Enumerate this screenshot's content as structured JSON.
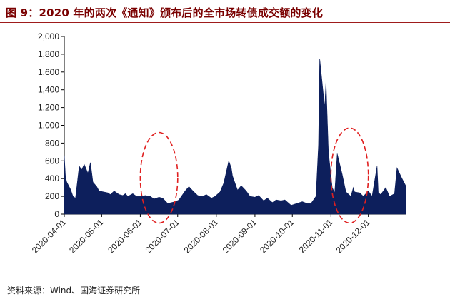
{
  "figure": {
    "title": "图 9：2020 年的两次《通知》颁布后的全市场转债成交额的变化",
    "source": "资料来源：Wind、国海证券研究所"
  },
  "colors": {
    "title": "#7a0000",
    "rule": "#9e1b1b",
    "area_fill": "#0d1f5c",
    "ellipse": "#e02020"
  },
  "chart_data": {
    "type": "area",
    "title": "",
    "xlabel": "",
    "ylabel": "",
    "ylim": [
      0,
      2000
    ],
    "yticks": [
      0,
      200,
      400,
      600,
      800,
      1000,
      1200,
      1400,
      1600,
      1800,
      2000
    ],
    "ytick_labels": [
      "0",
      "200",
      "400",
      "600",
      "800",
      "1,000",
      "1,200",
      "1,400",
      "1,600",
      "1,800",
      "2,000"
    ],
    "xlim": [
      "2020-04-01",
      "2020-12-31"
    ],
    "xticks": [
      "2020-04-01",
      "2020-05-01",
      "2020-06-01",
      "2020-07-01",
      "2020-08-01",
      "2020-09-01",
      "2020-10-01",
      "2020-11-01",
      "2020-12-01"
    ],
    "grid": false,
    "legend": "none",
    "series": [
      {
        "x": [
          "2020-04-01",
          "2020-04-02",
          "2020-04-03",
          "2020-04-06",
          "2020-04-08",
          "2020-04-10",
          "2020-04-13",
          "2020-04-15",
          "2020-04-17",
          "2020-04-20",
          "2020-04-22",
          "2020-04-24",
          "2020-04-27",
          "2020-04-29",
          "2020-05-06",
          "2020-05-08",
          "2020-05-11",
          "2020-05-13",
          "2020-05-15",
          "2020-05-18",
          "2020-05-20",
          "2020-05-22",
          "2020-05-26",
          "2020-05-29",
          "2020-06-02",
          "2020-06-05",
          "2020-06-09",
          "2020-06-12",
          "2020-06-16",
          "2020-06-19",
          "2020-06-23",
          "2020-06-29",
          "2020-07-02",
          "2020-07-07",
          "2020-07-10",
          "2020-07-14",
          "2020-07-17",
          "2020-07-21",
          "2020-07-24",
          "2020-07-28",
          "2020-07-31",
          "2020-08-04",
          "2020-08-07",
          "2020-08-11",
          "2020-08-13",
          "2020-08-14",
          "2020-08-18",
          "2020-08-21",
          "2020-08-25",
          "2020-08-28",
          "2020-09-01",
          "2020-09-04",
          "2020-09-08",
          "2020-09-11",
          "2020-09-15",
          "2020-09-18",
          "2020-09-22",
          "2020-09-25",
          "2020-09-30",
          "2020-10-09",
          "2020-10-13",
          "2020-10-16",
          "2020-10-20",
          "2020-10-22",
          "2020-10-23",
          "2020-10-27",
          "2020-10-28",
          "2020-10-30",
          "2020-11-02",
          "2020-11-04",
          "2020-11-06",
          "2020-11-10",
          "2020-11-13",
          "2020-11-17",
          "2020-11-19",
          "2020-11-20",
          "2020-11-24",
          "2020-11-27",
          "2020-12-01",
          "2020-12-04",
          "2020-12-08",
          "2020-12-09",
          "2020-12-11",
          "2020-12-15",
          "2020-12-18",
          "2020-12-22",
          "2020-12-24",
          "2020-12-28",
          "2020-12-31"
        ],
        "values": [
          660,
          420,
          360,
          280,
          200,
          180,
          540,
          500,
          560,
          460,
          580,
          360,
          310,
          260,
          240,
          220,
          260,
          240,
          220,
          210,
          230,
          200,
          230,
          200,
          200,
          210,
          200,
          170,
          190,
          180,
          120,
          140,
          160,
          260,
          310,
          250,
          210,
          200,
          220,
          180,
          200,
          250,
          350,
          600,
          520,
          430,
          270,
          320,
          260,
          200,
          190,
          210,
          150,
          180,
          130,
          160,
          150,
          160,
          100,
          140,
          120,
          120,
          200,
          780,
          1750,
          1200,
          1500,
          700,
          300,
          240,
          680,
          450,
          250,
          200,
          300,
          250,
          240,
          200,
          260,
          200,
          540,
          240,
          220,
          300,
          200,
          230,
          520,
          400,
          320
        ]
      }
    ],
    "annotations": [
      {
        "shape": "dashed-ellipse",
        "x_from": "2020-06-01",
        "x_to": "2020-07-01",
        "y_from": -100,
        "y_to": 920
      },
      {
        "shape": "dashed-ellipse",
        "x_from": "2020-11-01",
        "x_to": "2020-12-01",
        "y_from": -100,
        "y_to": 970
      }
    ]
  }
}
